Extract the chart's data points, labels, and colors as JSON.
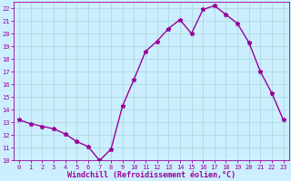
{
  "x": [
    0,
    1,
    2,
    3,
    4,
    5,
    6,
    7,
    8,
    9,
    10,
    11,
    12,
    13,
    14,
    15,
    16,
    17,
    18,
    19,
    20,
    21,
    22,
    23
  ],
  "y": [
    13.2,
    12.9,
    12.7,
    12.5,
    12.1,
    11.5,
    11.1,
    10.0,
    10.9,
    14.3,
    16.4,
    18.6,
    19.4,
    20.4,
    21.1,
    20.0,
    21.9,
    22.2,
    21.5,
    20.8,
    19.3,
    17.0,
    15.3,
    13.2
  ],
  "line_color": "#990099",
  "marker": "*",
  "marker_color": "#990099",
  "bg_color": "#cceeff",
  "grid_color": "#aadddd",
  "xlabel": "Windchill (Refroidissement éolien,°C)",
  "ylabel": "",
  "title": "",
  "xlim": [
    -0.5,
    23.5
  ],
  "ylim": [
    10,
    22.5
  ],
  "yticks": [
    10,
    11,
    12,
    13,
    14,
    15,
    16,
    17,
    18,
    19,
    20,
    21,
    22
  ],
  "xticks": [
    0,
    1,
    2,
    3,
    4,
    5,
    6,
    7,
    8,
    9,
    10,
    11,
    12,
    13,
    14,
    15,
    16,
    17,
    18,
    19,
    20,
    21,
    22,
    23
  ],
  "tick_color": "#990099",
  "label_color": "#990099",
  "font": "monospace",
  "tick_fontsize": 5.0,
  "xlabel_fontsize": 6.0
}
